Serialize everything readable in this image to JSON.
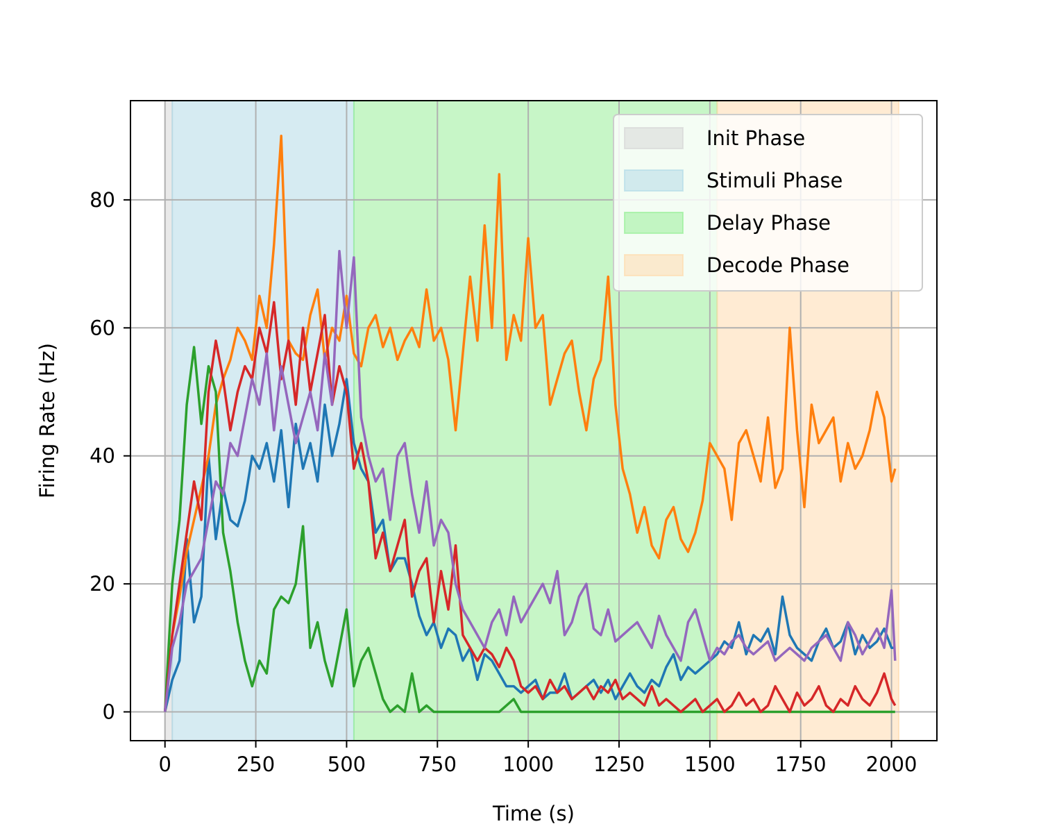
{
  "chart_data": {
    "type": "line",
    "title": "",
    "xlabel": "Time (s)",
    "ylabel": "Firing Rate (Hz)",
    "xlim": [
      -95,
      2125
    ],
    "ylim": [
      -4.5,
      95.5
    ],
    "xticks": [
      0,
      250,
      500,
      750,
      1000,
      1250,
      1500,
      1750,
      2000
    ],
    "yticks": [
      0,
      20,
      40,
      60,
      80
    ],
    "grid": true,
    "legend_position": "top-right",
    "phases": [
      {
        "name": "Init Phase",
        "start": 0,
        "end": 20,
        "color": "#d3d3d3"
      },
      {
        "name": "Stimuli Phase",
        "start": 20,
        "end": 520,
        "color": "#add8e6"
      },
      {
        "name": "Delay Phase",
        "start": 520,
        "end": 1520,
        "color": "#90ee90"
      },
      {
        "name": "Decode Phase",
        "start": 1520,
        "end": 2020,
        "color": "#ffd8a8"
      }
    ],
    "series": [
      {
        "color": "#1f77b4",
        "x": [
          0,
          20,
          40,
          60,
          80,
          100,
          120,
          140,
          160,
          180,
          200,
          220,
          240,
          260,
          280,
          300,
          320,
          340,
          360,
          380,
          400,
          420,
          440,
          460,
          480,
          500,
          520,
          540,
          560,
          580,
          600,
          620,
          640,
          660,
          680,
          700,
          720,
          740,
          760,
          780,
          800,
          820,
          840,
          860,
          880,
          900,
          920,
          940,
          960,
          980,
          1000,
          1020,
          1040,
          1060,
          1080,
          1100,
          1120,
          1140,
          1160,
          1180,
          1200,
          1220,
          1240,
          1260,
          1280,
          1300,
          1320,
          1340,
          1360,
          1380,
          1400,
          1420,
          1440,
          1460,
          1480,
          1500,
          1520,
          1540,
          1560,
          1580,
          1600,
          1620,
          1640,
          1660,
          1680,
          1700,
          1720,
          1740,
          1760,
          1780,
          1800,
          1820,
          1840,
          1860,
          1880,
          1900,
          1920,
          1940,
          1960,
          1980,
          2000,
          2010
        ],
        "y": [
          0,
          5,
          8,
          27,
          14,
          18,
          40,
          27,
          35,
          30,
          29,
          33,
          40,
          38,
          42,
          36,
          44,
          32,
          45,
          38,
          42,
          36,
          48,
          40,
          45,
          52,
          42,
          38,
          36,
          28,
          30,
          22,
          24,
          24,
          20,
          15,
          12,
          14,
          10,
          13,
          12,
          8,
          10,
          5,
          9,
          8,
          6,
          4,
          4,
          3,
          4,
          5,
          2,
          3,
          3,
          6,
          2,
          3,
          4,
          5,
          3,
          5,
          2,
          4,
          6,
          4,
          3,
          5,
          4,
          7,
          9,
          5,
          7,
          6,
          7,
          8,
          9,
          11,
          10,
          14,
          9,
          12,
          11,
          13,
          9,
          18,
          12,
          10,
          9,
          8,
          11,
          13,
          10,
          11,
          14,
          9,
          12,
          10,
          11,
          13,
          10,
          10
        ]
      },
      {
        "color": "#ff7f0e",
        "x": [
          0,
          20,
          40,
          60,
          80,
          100,
          120,
          140,
          160,
          180,
          200,
          220,
          240,
          260,
          280,
          300,
          320,
          340,
          360,
          380,
          400,
          420,
          440,
          460,
          480,
          500,
          520,
          540,
          560,
          580,
          600,
          620,
          640,
          660,
          680,
          700,
          720,
          740,
          760,
          780,
          800,
          820,
          840,
          860,
          880,
          900,
          920,
          940,
          960,
          980,
          1000,
          1020,
          1040,
          1060,
          1080,
          1100,
          1120,
          1140,
          1160,
          1180,
          1200,
          1220,
          1240,
          1260,
          1280,
          1300,
          1320,
          1340,
          1360,
          1380,
          1400,
          1420,
          1440,
          1460,
          1480,
          1500,
          1520,
          1540,
          1560,
          1580,
          1600,
          1620,
          1640,
          1660,
          1680,
          1700,
          1720,
          1740,
          1760,
          1780,
          1800,
          1820,
          1840,
          1860,
          1880,
          1900,
          1920,
          1940,
          1960,
          1980,
          2000,
          2010
        ],
        "y": [
          0,
          12,
          18,
          25,
          30,
          35,
          40,
          48,
          52,
          55,
          60,
          58,
          55,
          65,
          60,
          73,
          90,
          58,
          56,
          55,
          62,
          66,
          55,
          60,
          58,
          65,
          56,
          54,
          60,
          62,
          57,
          60,
          55,
          58,
          60,
          57,
          66,
          58,
          60,
          55,
          44,
          56,
          68,
          58,
          76,
          60,
          84,
          55,
          62,
          58,
          74,
          60,
          62,
          48,
          52,
          56,
          58,
          50,
          44,
          52,
          55,
          68,
          48,
          38,
          34,
          28,
          32,
          26,
          24,
          30,
          32,
          27,
          25,
          28,
          33,
          42,
          40,
          38,
          30,
          42,
          44,
          40,
          36,
          46,
          35,
          38,
          60,
          44,
          32,
          48,
          42,
          44,
          46,
          36,
          42,
          38,
          40,
          44,
          50,
          46,
          36,
          38
        ]
      },
      {
        "color": "#2ca02c",
        "x": [
          0,
          20,
          40,
          60,
          80,
          100,
          120,
          140,
          160,
          180,
          200,
          220,
          240,
          260,
          280,
          300,
          320,
          340,
          360,
          380,
          400,
          420,
          440,
          460,
          480,
          500,
          520,
          540,
          560,
          580,
          600,
          620,
          640,
          660,
          680,
          700,
          720,
          740,
          760,
          780,
          800,
          840,
          880,
          920,
          960,
          980,
          1000,
          1100,
          1200,
          1300,
          1400,
          1500,
          1600,
          1700,
          1800,
          1900,
          2000,
          2010
        ],
        "y": [
          0,
          20,
          30,
          48,
          57,
          45,
          54,
          50,
          28,
          22,
          14,
          8,
          4,
          8,
          6,
          16,
          18,
          17,
          20,
          29,
          10,
          14,
          8,
          4,
          10,
          16,
          4,
          8,
          10,
          6,
          2,
          0,
          1,
          0,
          6,
          0,
          1,
          0,
          0,
          0,
          0,
          0,
          0,
          0,
          2,
          0,
          0,
          0,
          0,
          0,
          0,
          0,
          0,
          0,
          0,
          0,
          0,
          0
        ]
      },
      {
        "color": "#d62728",
        "x": [
          0,
          20,
          40,
          60,
          80,
          100,
          120,
          140,
          160,
          180,
          200,
          220,
          240,
          260,
          280,
          300,
          320,
          340,
          360,
          380,
          400,
          420,
          440,
          460,
          480,
          500,
          520,
          540,
          560,
          580,
          600,
          620,
          640,
          660,
          680,
          700,
          720,
          740,
          760,
          780,
          800,
          820,
          840,
          860,
          880,
          900,
          920,
          940,
          960,
          980,
          1000,
          1020,
          1040,
          1060,
          1080,
          1100,
          1120,
          1140,
          1160,
          1180,
          1200,
          1220,
          1240,
          1260,
          1280,
          1300,
          1320,
          1340,
          1360,
          1380,
          1400,
          1420,
          1440,
          1460,
          1480,
          1500,
          1520,
          1540,
          1560,
          1580,
          1600,
          1620,
          1640,
          1660,
          1680,
          1700,
          1720,
          1740,
          1760,
          1780,
          1800,
          1820,
          1840,
          1860,
          1880,
          1900,
          1920,
          1940,
          1960,
          1980,
          2000,
          2010
        ],
        "y": [
          0,
          12,
          20,
          28,
          36,
          30,
          50,
          58,
          52,
          44,
          50,
          54,
          52,
          60,
          56,
          64,
          52,
          58,
          48,
          60,
          50,
          56,
          62,
          48,
          54,
          50,
          38,
          42,
          36,
          24,
          28,
          22,
          26,
          30,
          18,
          22,
          24,
          14,
          22,
          16,
          26,
          12,
          10,
          8,
          10,
          9,
          7,
          10,
          8,
          4,
          3,
          4,
          2,
          5,
          3,
          4,
          2,
          3,
          4,
          2,
          4,
          3,
          5,
          2,
          3,
          2,
          1,
          4,
          1,
          2,
          1,
          0,
          1,
          2,
          0,
          1,
          2,
          0,
          1,
          3,
          1,
          2,
          0,
          1,
          4,
          2,
          0,
          3,
          1,
          2,
          4,
          1,
          0,
          2,
          1,
          4,
          2,
          1,
          3,
          6,
          2,
          1
        ]
      },
      {
        "color": "#9467bd",
        "x": [
          0,
          20,
          40,
          60,
          80,
          100,
          120,
          140,
          160,
          180,
          200,
          220,
          240,
          260,
          280,
          300,
          320,
          340,
          360,
          380,
          400,
          420,
          440,
          460,
          480,
          500,
          520,
          540,
          560,
          580,
          600,
          620,
          640,
          660,
          680,
          700,
          720,
          740,
          760,
          780,
          800,
          820,
          840,
          860,
          880,
          900,
          920,
          940,
          960,
          980,
          1000,
          1020,
          1040,
          1060,
          1080,
          1100,
          1120,
          1140,
          1160,
          1180,
          1200,
          1220,
          1240,
          1260,
          1280,
          1300,
          1320,
          1340,
          1360,
          1380,
          1400,
          1420,
          1440,
          1460,
          1480,
          1500,
          1520,
          1540,
          1560,
          1580,
          1600,
          1620,
          1640,
          1660,
          1680,
          1700,
          1720,
          1740,
          1760,
          1780,
          1800,
          1820,
          1840,
          1860,
          1880,
          1900,
          1920,
          1940,
          1960,
          1980,
          2000,
          2010
        ],
        "y": [
          0,
          10,
          14,
          20,
          22,
          24,
          30,
          36,
          34,
          42,
          40,
          46,
          52,
          48,
          56,
          44,
          54,
          48,
          42,
          46,
          50,
          44,
          56,
          48,
          72,
          60,
          71,
          46,
          40,
          36,
          38,
          30,
          40,
          42,
          34,
          28,
          36,
          26,
          30,
          28,
          20,
          16,
          14,
          12,
          10,
          14,
          16,
          12,
          18,
          14,
          16,
          18,
          20,
          17,
          22,
          12,
          14,
          18,
          20,
          13,
          12,
          16,
          11,
          12,
          13,
          14,
          12,
          10,
          15,
          12,
          10,
          8,
          14,
          16,
          12,
          8,
          10,
          9,
          11,
          12,
          10,
          9,
          10,
          11,
          8,
          9,
          10,
          9,
          8,
          10,
          11,
          12,
          10,
          8,
          14,
          12,
          9,
          11,
          13,
          10,
          19,
          8
        ]
      }
    ]
  }
}
